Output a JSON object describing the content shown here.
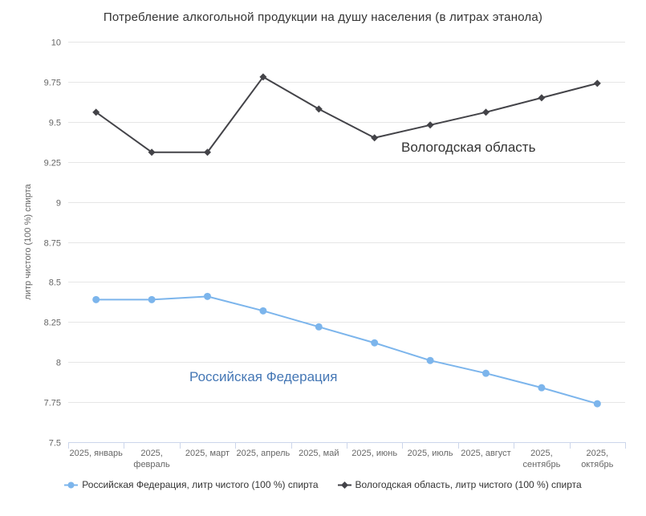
{
  "chart_data": {
    "type": "line",
    "title": "Потребление алкогольной продукции на душу населения (в литрах этанола)",
    "xlabel": "",
    "ylabel": "литр чистого (100 %) спирта",
    "ylim": [
      7.5,
      10
    ],
    "ytick_step": 0.25,
    "grid": true,
    "legend_position": "bottom",
    "categories": [
      "2025, январь",
      "2025, февраль",
      "2025, март",
      "2025, апрель",
      "2025, май",
      "2025, июнь",
      "2025, июль",
      "2025, август",
      "2025, сентябрь",
      "2025, октябрь"
    ],
    "series": [
      {
        "name": "Российская Федерация",
        "legend_label": "Российская Федерация, литр чистого (100 %) спирта",
        "color": "#7cb5ec",
        "marker": "circle",
        "values": [
          8.39,
          8.39,
          8.41,
          8.32,
          8.22,
          8.12,
          8.01,
          7.93,
          7.84,
          7.74
        ]
      },
      {
        "name": "Вологодская область",
        "legend_label": "Вологодская область, литр чистого (100 %) спирта",
        "color": "#434348",
        "marker": "diamond",
        "values": [
          9.56,
          9.31,
          9.31,
          9.78,
          9.58,
          9.4,
          9.48,
          9.56,
          9.65,
          9.74
        ]
      }
    ],
    "annotations": [
      {
        "text": "Вологодская область",
        "color": "#333333"
      },
      {
        "text": "Российская Федерация",
        "color": "#4577b5"
      }
    ]
  },
  "colors": {
    "background": "#ffffff",
    "grid": "#e6e6e6",
    "axis": "#ccd6eb",
    "tick_label": "#666666",
    "axis_title": "#666666",
    "title": "#333333",
    "legend_text": "#333333"
  }
}
